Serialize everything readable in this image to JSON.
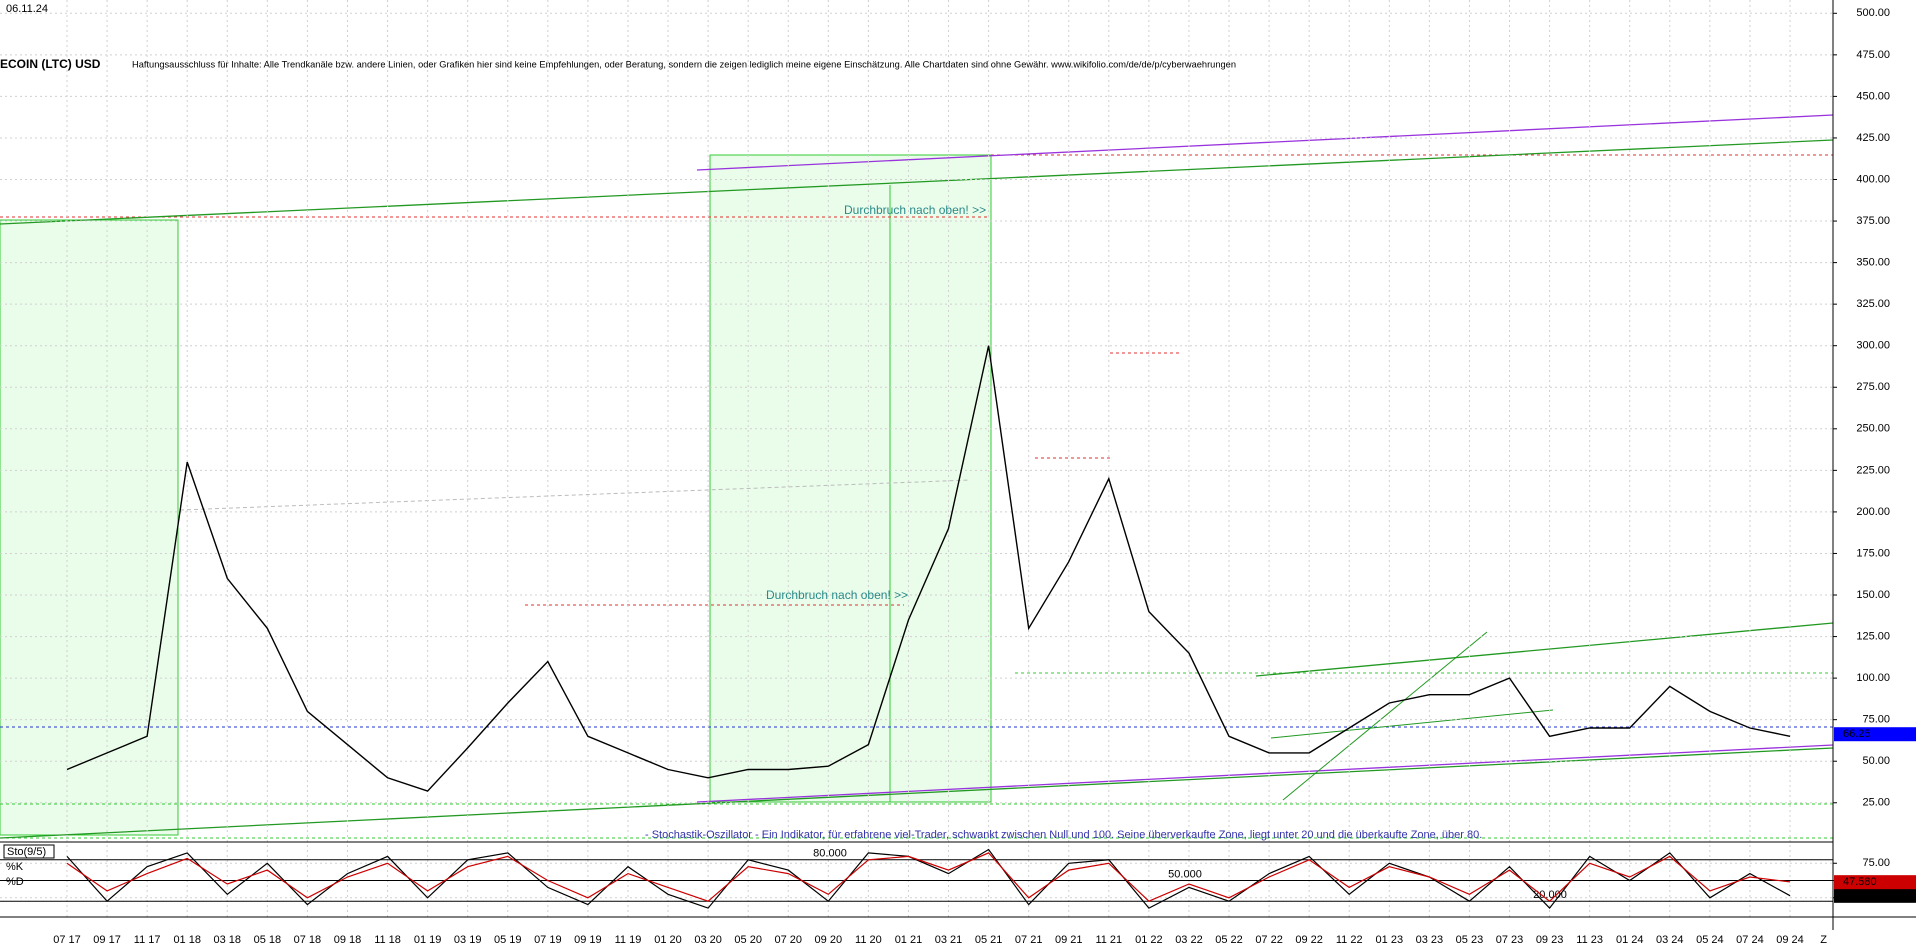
{
  "chart_data": [
    {
      "type": "line",
      "date": "06.11.24",
      "title": "ECOIN (LTC) USD",
      "subtitle": "Haftungsausschluss für Inhalte: Alle Trendkanäle bzw. andere Linien, oder Grafiken hier sind keine Empfehlungen, oder Beratung, sondern die zeigen lediglich meine eigene Einschätzung. Alle Chartdaten sind ohne Gewähr.  www.wikifolio.com/de/de/p/cyberwaehrungen",
      "annotations": [
        "Durchbruch nach oben! >>",
        "Durchbruch nach oben! >>"
      ],
      "categories": [
        "07 17",
        "09 17",
        "11 17",
        "01 18",
        "03 18",
        "05 18",
        "07 18",
        "09 18",
        "11 18",
        "01 19",
        "03 19",
        "05 19",
        "07 19",
        "09 19",
        "11 19",
        "01 20",
        "03 20",
        "05 20",
        "07 20",
        "09 20",
        "11 20",
        "01 21",
        "03 21",
        "05 21",
        "07 21",
        "09 21",
        "11 21",
        "01 22",
        "03 22",
        "05 22",
        "07 22",
        "09 22",
        "11 22",
        "01 23",
        "03 23",
        "05 23",
        "07 23",
        "09 23",
        "11 23",
        "01 24",
        "03 24",
        "05 24",
        "07 24",
        "09 24"
      ],
      "values": [
        45,
        55,
        65,
        230,
        160,
        130,
        80,
        60,
        40,
        32,
        58,
        85,
        110,
        65,
        55,
        45,
        40,
        45,
        45,
        47,
        60,
        135,
        190,
        300,
        130,
        170,
        220,
        140,
        115,
        65,
        55,
        55,
        70,
        85,
        90,
        90,
        100,
        65,
        70,
        70,
        95,
        80,
        70,
        65
      ],
      "color": "#000000",
      "ylim": [
        2,
        508
      ],
      "yticks": [
        {
          "value": 25,
          "label": "25.00"
        },
        {
          "value": 50,
          "label": "50.00"
        },
        {
          "value": 75,
          "label": "75.00"
        },
        {
          "value": 100,
          "label": "100.00"
        },
        {
          "value": 125,
          "label": "125.00"
        },
        {
          "value": 150,
          "label": "150.00"
        },
        {
          "value": 175,
          "label": "175.00"
        },
        {
          "value": 200,
          "label": "200.00"
        },
        {
          "value": 225,
          "label": "225.00"
        },
        {
          "value": 250,
          "label": "250.00"
        },
        {
          "value": 275,
          "label": "275.00"
        },
        {
          "value": 300,
          "label": "300.00"
        },
        {
          "value": 325,
          "label": "325.00"
        },
        {
          "value": 350,
          "label": "350.00"
        },
        {
          "value": 375,
          "label": "375.00"
        },
        {
          "value": 400,
          "label": "400.00"
        },
        {
          "value": 425,
          "label": "425.00"
        },
        {
          "value": 450,
          "label": "450.00"
        },
        {
          "value": 475,
          "label": "475.00"
        },
        {
          "value": 500,
          "label": "500.00"
        }
      ],
      "grid": true,
      "last_value": {
        "value": 66.25,
        "label": "66.25"
      },
      "last_color": "#0000ff"
    },
    {
      "type": "line",
      "title": "Sto(9/5)",
      "note": "- Stochastik-Oszillator - Ein Indikator, für erfahrene viel-Trader, schwankt zwischen Null und 100. Seine überverkaufte Zone, liegt unter 20 und die überkaufte Zone, über 80.",
      "series": [
        {
          "name": "%K",
          "color": "#000000",
          "values": [
            85,
            20,
            70,
            90,
            30,
            75,
            15,
            60,
            85,
            25,
            80,
            90,
            40,
            15,
            70,
            30,
            10,
            80,
            65,
            20,
            90,
            85,
            60,
            95,
            15,
            75,
            80,
            10,
            40,
            20,
            60,
            85,
            30,
            75,
            55,
            20,
            70,
            10,
            85,
            50,
            90,
            25,
            60,
            28
          ],
          "last": {
            "value": 27.8,
            "label": "27.800"
          }
        },
        {
          "name": "%D",
          "color": "#cc0000",
          "values": [
            75,
            35,
            60,
            82,
            45,
            65,
            25,
            55,
            75,
            35,
            70,
            85,
            50,
            25,
            60,
            40,
            20,
            70,
            60,
            30,
            80,
            85,
            65,
            90,
            25,
            65,
            75,
            20,
            45,
            25,
            55,
            80,
            40,
            70,
            55,
            30,
            65,
            20,
            75,
            55,
            85,
            35,
            55,
            48
          ],
          "last": {
            "value": 47.58,
            "label": "47.580"
          }
        }
      ],
      "levels": [
        {
          "value": 80,
          "label": "80.000"
        },
        {
          "value": 50,
          "label": "50.000"
        },
        {
          "value": 20,
          "label": "20.000"
        }
      ],
      "ylim": [
        0,
        100
      ],
      "yticks": [
        {
          "value": 25,
          "label": "25.00"
        },
        {
          "value": 50,
          "label": "50.00"
        },
        {
          "value": 75,
          "label": "75.00"
        }
      ],
      "end_label": "Z"
    }
  ]
}
